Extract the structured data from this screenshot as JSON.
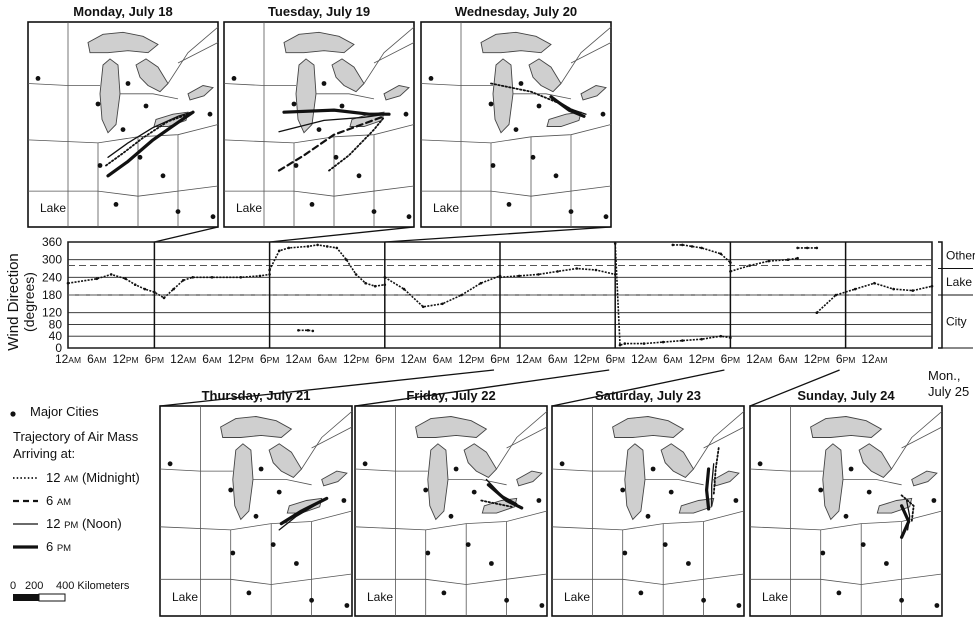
{
  "maps": {
    "top": [
      {
        "title": "Monday, July 18",
        "lake_label": "Lake",
        "traj": [
          {
            "time": "12 AM",
            "pts": [
              [
                78,
                140
              ],
              [
                95,
                128
              ],
              [
                115,
                113
              ],
              [
                140,
                97
              ],
              [
                160,
                90
              ]
            ]
          },
          {
            "time": "12 PM",
            "pts": [
              [
                80,
                132
              ],
              [
                100,
                118
              ],
              [
                125,
                103
              ],
              [
                150,
                92
              ],
              [
                163,
                88
              ]
            ]
          },
          {
            "time": "6 PM",
            "pts": [
              [
                80,
                150
              ],
              [
                100,
                136
              ],
              [
                125,
                115
              ],
              [
                150,
                98
              ],
              [
                165,
                88
              ]
            ]
          }
        ]
      },
      {
        "title": "Tuesday, July 19",
        "lake_label": "Lake",
        "traj": [
          {
            "time": "12 AM",
            "pts": [
              [
                105,
                145
              ],
              [
                125,
                130
              ],
              [
                150,
                105
              ],
              [
                160,
                93
              ]
            ]
          },
          {
            "time": "6 AM",
            "pts": [
              [
                55,
                145
              ],
              [
                80,
                130
              ],
              [
                110,
                110
              ],
              [
                160,
                92
              ]
            ]
          },
          {
            "time": "12 PM",
            "pts": [
              [
                55,
                107
              ],
              [
                100,
                96
              ],
              [
                140,
                93
              ],
              [
                162,
                90
              ]
            ]
          },
          {
            "time": "6 PM",
            "pts": [
              [
                60,
                88
              ],
              [
                110,
                86
              ],
              [
                145,
                90
              ],
              [
                165,
                90
              ]
            ]
          }
        ]
      },
      {
        "title": "Wednesday, July 20",
        "lake_label": "Lake",
        "traj": [
          {
            "time": "12 AM",
            "pts": [
              [
                70,
                60
              ],
              [
                110,
                68
              ],
              [
                140,
                80
              ],
              [
                160,
                90
              ]
            ]
          },
          {
            "time": "12 PM",
            "pts": [
              [
                135,
                76
              ],
              [
                150,
                85
              ],
              [
                165,
                90
              ]
            ]
          },
          {
            "time": "6 PM",
            "pts": [
              [
                130,
                73
              ],
              [
                148,
                86
              ],
              [
                163,
                92
              ]
            ]
          }
        ]
      }
    ],
    "bottom": [
      {
        "title": "Thursday, July 21",
        "lake_label": "Lake",
        "traj": [
          {
            "time": "12 AM",
            "pts": [
              [
                125,
                110
              ],
              [
                140,
                100
              ],
              [
                160,
                90
              ]
            ]
          },
          {
            "time": "12 PM",
            "pts": [
              [
                118,
                118
              ],
              [
                135,
                105
              ],
              [
                158,
                92
              ]
            ]
          },
          {
            "time": "6 PM",
            "pts": [
              [
                120,
                112
              ],
              [
                140,
                100
              ],
              [
                165,
                88
              ]
            ]
          }
        ]
      },
      {
        "title": "Friday, July 22",
        "lake_label": "Lake",
        "traj": [
          {
            "time": "12 AM",
            "pts": [
              [
                125,
                90
              ],
              [
                140,
                93
              ],
              [
                155,
                96
              ]
            ]
          },
          {
            "time": "12 PM",
            "pts": [
              [
                130,
                70
              ],
              [
                145,
                85
              ],
              [
                160,
                93
              ]
            ]
          },
          {
            "time": "6 PM",
            "pts": [
              [
                132,
                75
              ],
              [
                150,
                90
              ],
              [
                165,
                97
              ]
            ]
          }
        ]
      },
      {
        "title": "Saturday, July 23",
        "lake_label": "Lake",
        "traj": [
          {
            "time": "12 AM",
            "pts": [
              [
                165,
                40
              ],
              [
                162,
                60
              ],
              [
                160,
                85
              ]
            ]
          },
          {
            "time": "12 PM",
            "pts": [
              [
                160,
                55
              ],
              [
                158,
                75
              ],
              [
                158,
                95
              ]
            ]
          },
          {
            "time": "6 PM",
            "pts": [
              [
                155,
                60
              ],
              [
                153,
                80
              ],
              [
                155,
                98
              ]
            ]
          }
        ]
      },
      {
        "title": "Sunday, July 24",
        "lake_label": "Lake",
        "traj": [
          {
            "time": "12 AM",
            "pts": [
              [
                150,
                85
              ],
              [
                162,
                95
              ],
              [
                160,
                110
              ]
            ]
          },
          {
            "time": "12 PM",
            "pts": [
              [
                155,
                90
              ],
              [
                158,
                105
              ],
              [
                156,
                118
              ]
            ]
          },
          {
            "time": "6 PM",
            "pts": [
              [
                150,
                95
              ],
              [
                157,
                110
              ],
              [
                150,
                125
              ]
            ]
          }
        ]
      }
    ]
  },
  "legend": {
    "cities_label": "Major Cities",
    "traj_title_1": "Trajectory of Air Mass",
    "traj_title_2": "Arriving at:",
    "items": [
      {
        "label_main": "12 ",
        "label_small": "AM",
        "label_tail": " (Midnight)",
        "style": "dotted"
      },
      {
        "label_main": "6 ",
        "label_small": "AM",
        "label_tail": "",
        "style": "dashed"
      },
      {
        "label_main": "12 ",
        "label_small": "PM",
        "label_tail": " (Noon)",
        "style": "thin"
      },
      {
        "label_main": "6 ",
        "label_small": "PM",
        "label_tail": "",
        "style": "thick"
      }
    ],
    "scale_labels": [
      "0",
      "200",
      "400 Kilometers"
    ]
  },
  "chart_data": {
    "type": "scatter",
    "ylabel_1": "Wind Direction",
    "ylabel_2": "(degrees)",
    "ylim": [
      0,
      360
    ],
    "yticks": [
      0,
      40,
      80,
      120,
      180,
      240,
      300,
      360
    ],
    "xlim": [
      0,
      180
    ],
    "x_unit": "hours since Monday, July 18, 12 AM",
    "x_tick_labels": [
      {
        "main": "12",
        "small": "AM"
      },
      {
        "main": "6",
        "small": "AM"
      },
      {
        "main": "12",
        "small": "PM"
      },
      {
        "main": "6",
        "small": "PM"
      },
      {
        "main": "12",
        "small": "AM"
      },
      {
        "main": "6",
        "small": "AM"
      },
      {
        "main": "12",
        "small": "PM"
      },
      {
        "main": "6",
        "small": "PM"
      },
      {
        "main": "12",
        "small": "AM"
      },
      {
        "main": "6",
        "small": "AM"
      },
      {
        "main": "12",
        "small": "PM"
      },
      {
        "main": "6",
        "small": "PM"
      },
      {
        "main": "12",
        "small": "AM"
      },
      {
        "main": "6",
        "small": "AM"
      },
      {
        "main": "12",
        "small": "PM"
      },
      {
        "main": "6",
        "small": "PM"
      },
      {
        "main": "12",
        "small": "AM"
      },
      {
        "main": "6",
        "small": "AM"
      },
      {
        "main": "12",
        "small": "PM"
      },
      {
        "main": "6",
        "small": "PM"
      },
      {
        "main": "12",
        "small": "AM"
      },
      {
        "main": "6",
        "small": "AM"
      },
      {
        "main": "12",
        "small": "PM"
      },
      {
        "main": "6",
        "small": "PM"
      },
      {
        "main": "12",
        "small": "AM"
      },
      {
        "main": "6",
        "small": "AM"
      },
      {
        "main": "12",
        "small": "PM"
      },
      {
        "main": "6",
        "small": "PM"
      },
      {
        "main": "12",
        "small": "AM"
      }
    ],
    "end_label_1": "Mon.,",
    "end_label_2": "July 25",
    "sector_bands": [
      {
        "label": "Other",
        "from": 270,
        "to": 360
      },
      {
        "label": "Lake",
        "from": 180,
        "to": 270
      },
      {
        "label": "City",
        "from": 0,
        "to": 180
      }
    ],
    "reference_lines": [
      180,
      280
    ],
    "day_markers_hours": [
      18,
      42,
      66,
      90,
      114,
      138,
      162
    ],
    "series": [
      {
        "x": [
          0,
          6,
          9,
          12,
          14,
          16,
          18,
          20,
          22,
          24,
          26,
          30,
          36,
          40,
          42
        ],
        "y": [
          220,
          235,
          250,
          235,
          215,
          200,
          190,
          170,
          200,
          230,
          240,
          240,
          240,
          245,
          250
        ]
      },
      {
        "x": [
          42,
          44,
          46,
          50,
          52,
          54,
          56,
          58,
          60,
          62,
          64,
          66
        ],
        "y": [
          265,
          330,
          340,
          345,
          350,
          345,
          340,
          300,
          250,
          220,
          210,
          215
        ]
      },
      {
        "x": [
          48,
          50,
          51
        ],
        "y": [
          60,
          60,
          58
        ]
      },
      {
        "x": [
          66,
          70,
          74,
          78,
          82,
          86,
          90
        ],
        "y": [
          240,
          200,
          140,
          150,
          180,
          220,
          245
        ]
      },
      {
        "x": [
          90,
          94,
          98,
          102,
          106,
          110,
          114
        ],
        "y": [
          240,
          245,
          250,
          260,
          270,
          265,
          250
        ]
      },
      {
        "x": [
          114,
          115,
          116,
          120,
          124,
          128,
          132,
          136,
          138
        ],
        "y": [
          355,
          10,
          15,
          15,
          20,
          25,
          30,
          40,
          35
        ]
      },
      {
        "x": [
          126,
          128,
          130,
          132,
          136,
          138
        ],
        "y": [
          350,
          350,
          345,
          340,
          320,
          290
        ]
      },
      {
        "x": [
          138,
          142,
          146,
          150,
          152
        ],
        "y": [
          260,
          280,
          295,
          300,
          305
        ]
      },
      {
        "x": [
          152,
          154,
          156
        ],
        "y": [
          340,
          340,
          340
        ]
      },
      {
        "x": [
          156,
          160,
          164,
          168,
          172,
          176,
          180
        ],
        "y": [
          120,
          180,
          200,
          220,
          200,
          195,
          210
        ]
      }
    ]
  }
}
